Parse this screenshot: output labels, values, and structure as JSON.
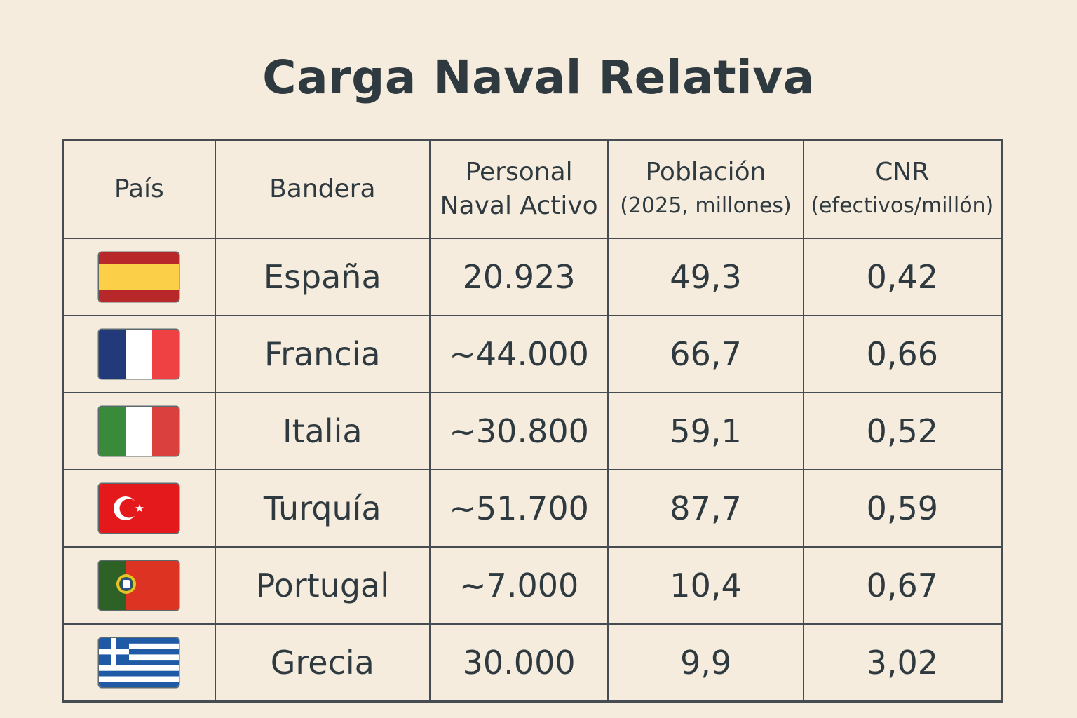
{
  "title": "Carga Naval Relativa",
  "headers": {
    "pais": "País",
    "bandera": "Bandera",
    "personal_1": "Personal",
    "personal_2": "Naval Activo",
    "poblacion": "Población",
    "poblacion_sub": "(2025, millones)",
    "cnr": "CNR",
    "cnr_sub": "(efectivos/millón)"
  },
  "rows": [
    {
      "flag": "spain-flag",
      "country": "España",
      "personal": "20.923",
      "poblacion": "49,3",
      "cnr": "0,42"
    },
    {
      "flag": "france-flag",
      "country": "Francia",
      "personal": "~44.000",
      "poblacion": "66,7",
      "cnr": "0,66"
    },
    {
      "flag": "italy-flag",
      "country": "Italia",
      "personal": "~30.800",
      "poblacion": "59,1",
      "cnr": "0,52"
    },
    {
      "flag": "turkey-flag",
      "country": "Turquía",
      "personal": "~51.700",
      "poblacion": "87,7",
      "cnr": "0,59"
    },
    {
      "flag": "portugal-flag",
      "country": "Portugal",
      "personal": "~7.000",
      "poblacion": "10,4",
      "cnr": "0,67"
    },
    {
      "flag": "greece-flag",
      "country": "Grecia",
      "personal": "30.000",
      "poblacion": "9,9",
      "cnr": "3,02"
    }
  ]
}
